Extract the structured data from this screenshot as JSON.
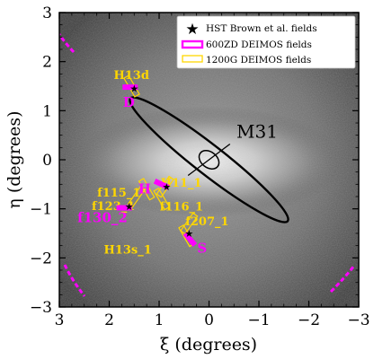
{
  "chart_data": {
    "type": "scatter",
    "xlabel": "ξ (degrees)",
    "ylabel": "η (degrees)",
    "xlim": [
      3,
      -3
    ],
    "ylim": [
      -3,
      3
    ],
    "xticks": [
      "3",
      "2",
      "1",
      "0",
      "−1",
      "−2",
      "−3"
    ],
    "yticks": [
      "3",
      "2",
      "1",
      "0",
      "−1",
      "−2",
      "−3"
    ],
    "grid": false,
    "legend_position": "top-right",
    "legend": [
      {
        "label": "HST Brown et al. fields",
        "marker": "star",
        "color": "#000000"
      },
      {
        "label": "600ZD DEIMOS fields",
        "marker": "rect",
        "color": "#ff00ff"
      },
      {
        "label": "1200G DEIMOS fields",
        "marker": "rect",
        "color": "#ffd700"
      }
    ],
    "galaxy": {
      "label": "M31",
      "center": [
        0,
        0
      ],
      "semi_major_deg": 2.0,
      "semi_minor_deg": 0.3,
      "position_angle_deg": 38
    },
    "hst_fields": [
      {
        "name": "H13d",
        "x": 1.5,
        "y": 1.45
      },
      {
        "name": "H11",
        "x": 0.85,
        "y": -0.55
      },
      {
        "name": "H13s",
        "x": 0.4,
        "y": -1.5
      },
      {
        "name": "H",
        "x": 1.6,
        "y": -0.95
      }
    ],
    "deimos_600zd": [
      {
        "name": "D",
        "x": 1.58,
        "y": 1.48
      },
      {
        "name": "H",
        "x": 0.95,
        "y": -0.5
      },
      {
        "name": "f130_2",
        "x": 1.7,
        "y": -0.98
      },
      {
        "name": "S",
        "x": 0.38,
        "y": -1.62
      }
    ],
    "deimos_1200g": [
      {
        "name": "H13d",
        "x": 1.55,
        "y": 1.5
      },
      {
        "name": "H11_1",
        "x": 0.88,
        "y": -0.55
      },
      {
        "name": "f115_1",
        "x": 1.25,
        "y": -0.6
      },
      {
        "name": "f123_1",
        "x": 1.45,
        "y": -0.75
      },
      {
        "name": "f116_1",
        "x": 0.95,
        "y": -0.8
      },
      {
        "name": "f207_1",
        "x": 0.4,
        "y": -1.3
      },
      {
        "name": "H13s_1",
        "x": 0.45,
        "y": -1.55
      }
    ]
  }
}
